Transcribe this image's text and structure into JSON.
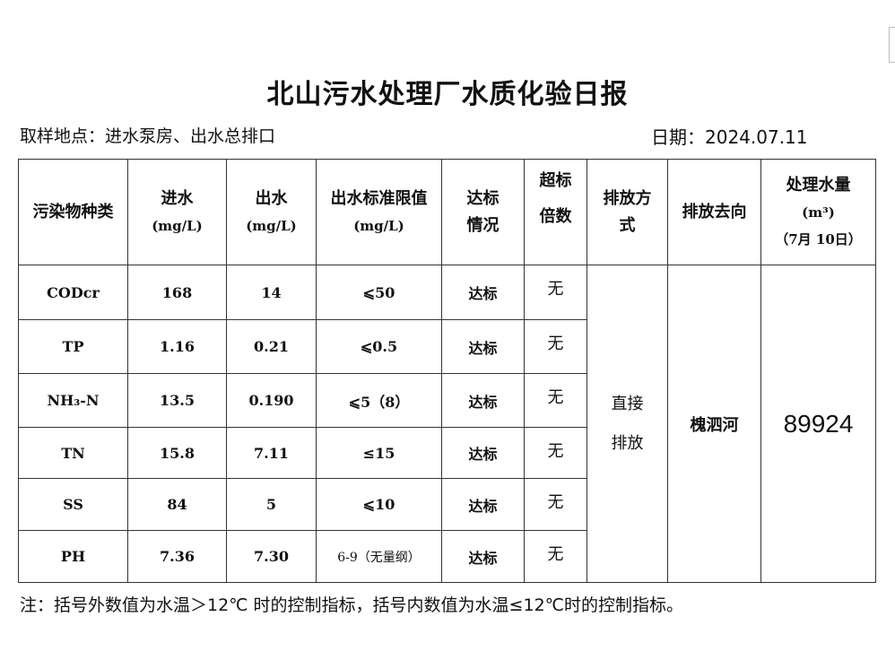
{
  "title": "北山污水处理厂水质化验日报",
  "location": "取样地点：进水泵房、出水总排口",
  "date": "日期：2024.07.11",
  "headers": {
    "pollutant": "污染物种类",
    "inflow": [
      "进水",
      "(mg/L)"
    ],
    "outflow": [
      "出水",
      "(mg/L)"
    ],
    "limit": [
      "出水标准限值",
      "(mg/L)"
    ],
    "compliance": [
      "达标",
      "情况"
    ],
    "exceed": [
      "超标",
      "倍数"
    ],
    "discharge_method": [
      "排放方",
      "式"
    ],
    "discharge_destination": "排放去向",
    "volume": [
      "处理水量",
      "(m³)",
      "（7月 10日）"
    ]
  },
  "rows": [
    {
      "pollutant": "CODcr",
      "inflow": "168",
      "outflow": "14",
      "limit": "⩽50",
      "compliance": "达标",
      "exceed": "无"
    },
    {
      "pollutant": "TP",
      "inflow": "1.16",
      "outflow": "0.21",
      "limit": "⩽0.5",
      "compliance": "达标",
      "exceed": "无"
    },
    {
      "pollutant": "NH₃-N",
      "inflow": "13.5",
      "outflow": "0.190",
      "limit": "⩽5（8）",
      "compliance": "达标",
      "exceed": "无"
    },
    {
      "pollutant": "TN",
      "inflow": "15.8",
      "outflow": "7.11",
      "limit": "≤15",
      "compliance": "达标",
      "exceed": "无"
    },
    {
      "pollutant": "SS",
      "inflow": "84",
      "outflow": "5",
      "limit": "⩽10",
      "compliance": "达标",
      "exceed": "无"
    },
    {
      "pollutant": "PH",
      "inflow": "7.36",
      "outflow": "7.30",
      "limit": "6-9（无量纲）",
      "compliance": "达标",
      "exceed": "无"
    }
  ],
  "discharge_method": [
    "直接",
    "排放"
  ],
  "discharge_destination": "槐泗河",
  "volume": "89924",
  "note": "注：括号外数值为水温＞12℃ 时的控制指标，括号内数值为水温≤12℃时的控制指标。"
}
